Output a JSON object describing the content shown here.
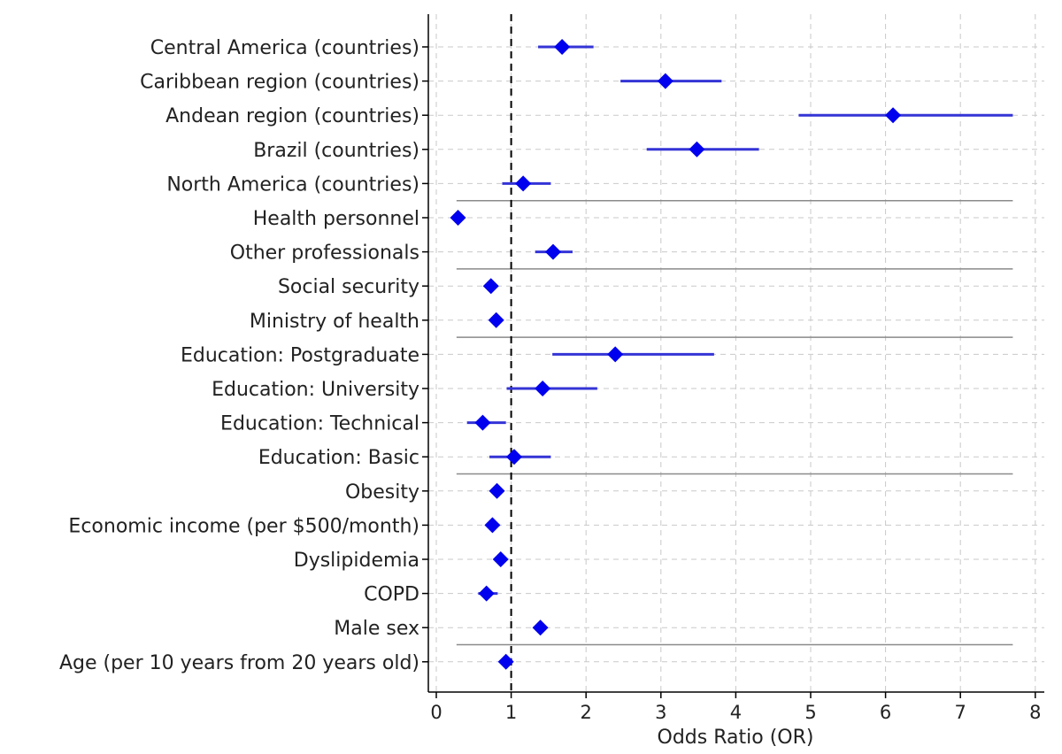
{
  "chart_data": {
    "type": "forest",
    "title": "",
    "xlabel": "Odds Ratio (OR)",
    "ylabel": "",
    "xlim": [
      -0.1,
      8.05
    ],
    "xticks": [
      "0",
      "1",
      "2",
      "3",
      "4",
      "5",
      "6",
      "7",
      "8"
    ],
    "reference_line": 1,
    "grid": true,
    "colors": {
      "marker": "#0000ee",
      "ci": "#3434d6",
      "reference": "#000000",
      "separator": "#8a8a8a"
    },
    "rows": [
      {
        "label": "Central America (countries)",
        "or": 1.68,
        "lo": 1.36,
        "hi": 2.1
      },
      {
        "label": "Caribbean region (countries)",
        "or": 3.06,
        "lo": 2.46,
        "hi": 3.81
      },
      {
        "label": "Andean region (countries)",
        "or": 6.1,
        "lo": 4.84,
        "hi": 7.7
      },
      {
        "label": "Brazil (countries)",
        "or": 3.48,
        "lo": 2.81,
        "hi": 4.31
      },
      {
        "label": "North America (countries)",
        "or": 1.16,
        "lo": 0.88,
        "hi": 1.53
      },
      {
        "label": "Health personnel",
        "or": 0.29,
        "lo": 0.26,
        "hi": 0.32
      },
      {
        "label": "Other professionals",
        "or": 1.56,
        "lo": 1.32,
        "hi": 1.82
      },
      {
        "label": "Social security",
        "or": 0.73,
        "lo": 0.68,
        "hi": 0.79
      },
      {
        "label": "Ministry of health",
        "or": 0.8,
        "lo": 0.75,
        "hi": 0.85
      },
      {
        "label": "Education: Postgraduate",
        "or": 2.39,
        "lo": 1.55,
        "hi": 3.71
      },
      {
        "label": "Education: University",
        "or": 1.42,
        "lo": 0.94,
        "hi": 2.15
      },
      {
        "label": "Education: Technical",
        "or": 0.62,
        "lo": 0.41,
        "hi": 0.93
      },
      {
        "label": "Education: Basic",
        "or": 1.04,
        "lo": 0.71,
        "hi": 1.53
      },
      {
        "label": "Obesity",
        "or": 0.81,
        "lo": 0.77,
        "hi": 0.86
      },
      {
        "label": "Economic income (per $500/month)",
        "or": 0.75,
        "lo": 0.72,
        "hi": 0.78
      },
      {
        "label": "Dyslipidemia",
        "or": 0.86,
        "lo": 0.8,
        "hi": 0.94
      },
      {
        "label": "COPD",
        "or": 0.67,
        "lo": 0.56,
        "hi": 0.82
      },
      {
        "label": "Male sex",
        "or": 1.39,
        "lo": 1.33,
        "hi": 1.46
      },
      {
        "label": "Age (per 10 years from 20 years old)",
        "or": 0.93,
        "lo": 0.91,
        "hi": 0.96
      }
    ],
    "separators_after": [
      "North America (countries)",
      "Other professionals",
      "Ministry of health",
      "Education: Basic",
      "Male sex"
    ],
    "separator_range": [
      0.27,
      7.7
    ]
  }
}
